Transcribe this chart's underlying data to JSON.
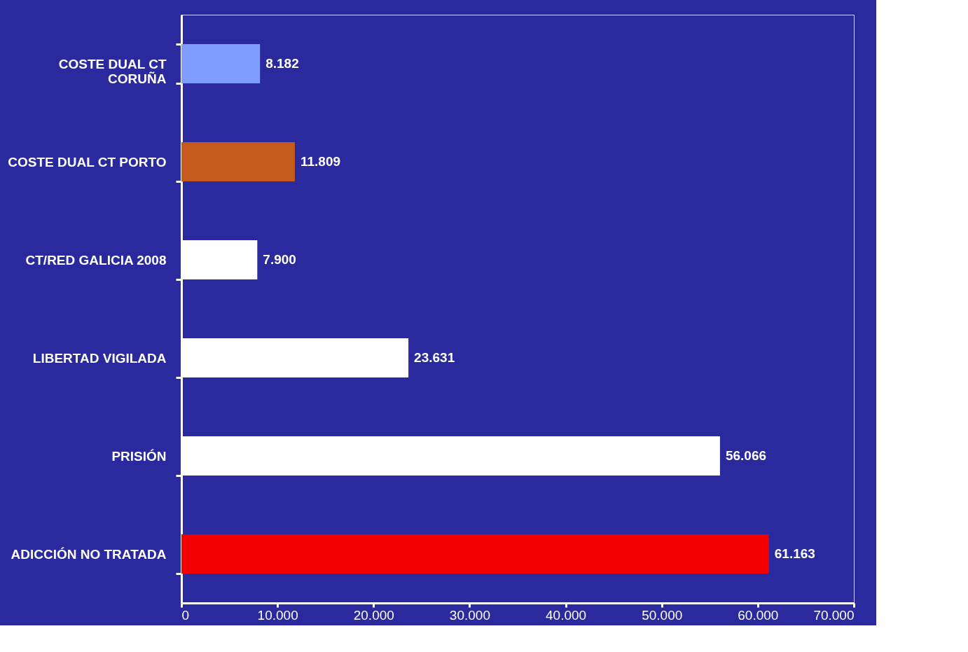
{
  "chart_data": {
    "type": "bar",
    "orientation": "horizontal",
    "categories": [
      "COSTE DUAL CT CORUÑA",
      "COSTE DUAL CT PORTO",
      "CT/RED GALICIA 2008",
      "LIBERTAD VIGILADA",
      "PRISIÓN",
      "ADICCIÓN NO TRATADA"
    ],
    "values": [
      8182,
      11809,
      7900,
      23631,
      56066,
      61163
    ],
    "colors": [
      "#7f9cff",
      "#c45a1c",
      "#ffffff",
      "#ffffff",
      "#ffffff",
      "#f20000"
    ],
    "value_labels": [
      "8.182",
      "11.809",
      "7.900",
      "23.631",
      "56.066",
      "61.163"
    ],
    "xlim": [
      0,
      70000
    ],
    "xticks": [
      0,
      {
        "value": 10000,
        "label": "10.000"
      },
      {
        "value": 20000,
        "label": "20.000"
      },
      {
        "value": 30000,
        "label": "30.000"
      },
      {
        "value": 40000,
        "label": "40.000"
      },
      {
        "value": 50000,
        "label": "50.000"
      },
      {
        "value": 60000,
        "label": "60.000"
      },
      {
        "value": 70000,
        "label": "70.000"
      }
    ],
    "grid": false
  }
}
